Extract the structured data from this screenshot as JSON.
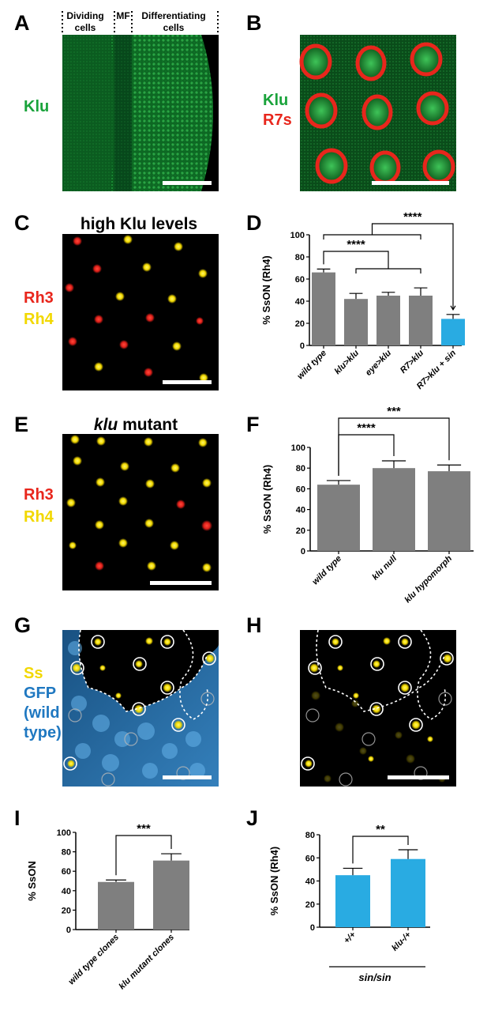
{
  "panel_labels": {
    "A": "A",
    "B": "B",
    "C": "C",
    "D": "D",
    "E": "E",
    "F": "F",
    "G": "G",
    "H": "H",
    "I": "I",
    "J": "J"
  },
  "panelA": {
    "header_dividing_1": "Dividing",
    "header_dividing_2": "cells",
    "header_mf": "MF",
    "header_diff_1": "Differentiating",
    "header_diff_2": "cells",
    "stain": "Klu",
    "stain_color": "#1aa33b"
  },
  "panelB": {
    "stain1": "Klu",
    "stain2": "R7s",
    "stain1_color": "#1aa33b",
    "stain2_color": "#e8261c"
  },
  "panelC": {
    "title": "high Klu levels",
    "stain1": "Rh3",
    "stain2": "Rh4",
    "stain1_color": "#e8261c",
    "stain2_color": "#f2d800"
  },
  "panelE": {
    "title_italic": "klu",
    "title_rest": " mutant",
    "stain1": "Rh3",
    "stain2": "Rh4"
  },
  "panelG": {
    "stain1": "Ss",
    "stain2": "GFP",
    "stain3": "(wild",
    "stain4": "type)",
    "stain1_color": "#f2d800",
    "stain2_color": "#1f78c1"
  },
  "chart_data": [
    {
      "panel": "D",
      "type": "bar",
      "ylabel": "% SsON (Rh4)",
      "ylim": [
        0,
        100
      ],
      "yticks": [
        0,
        20,
        40,
        60,
        80,
        100
      ],
      "categories": [
        "wild type",
        "klu>klu",
        "eye>klu",
        "R7>klu",
        "R7>klu + sin"
      ],
      "values": [
        66,
        42,
        45,
        45,
        24
      ],
      "errors": [
        3,
        5,
        3,
        7,
        4
      ],
      "colors": [
        "#7f7f7f",
        "#7f7f7f",
        "#7f7f7f",
        "#7f7f7f",
        "#29abe2"
      ],
      "significance": [
        "****",
        "****"
      ]
    },
    {
      "panel": "F",
      "type": "bar",
      "ylabel": "% SsON (Rh4)",
      "ylim": [
        0,
        100
      ],
      "yticks": [
        0,
        20,
        40,
        60,
        80,
        100
      ],
      "categories": [
        "wild type",
        "klu null",
        "klu hypomorph"
      ],
      "values": [
        64,
        80,
        77
      ],
      "errors": [
        4,
        7,
        6
      ],
      "colors": [
        "#7f7f7f",
        "#7f7f7f",
        "#7f7f7f"
      ],
      "significance": [
        "****",
        "***"
      ]
    },
    {
      "panel": "I",
      "type": "bar",
      "ylabel": "% SsON",
      "ylim": [
        0,
        100
      ],
      "yticks": [
        0,
        20,
        40,
        60,
        80,
        100
      ],
      "categories": [
        "wild type clones",
        "klu mutant clones"
      ],
      "values": [
        49,
        71
      ],
      "errors": [
        2,
        7
      ],
      "colors": [
        "#7f7f7f",
        "#7f7f7f"
      ],
      "significance": [
        "***"
      ]
    },
    {
      "panel": "J",
      "type": "bar",
      "ylabel": "% SsON (Rh4)",
      "ylim": [
        0,
        80
      ],
      "yticks": [
        0,
        20,
        40,
        60,
        80
      ],
      "categories": [
        "+/+",
        "klu-/+"
      ],
      "values": [
        45,
        59
      ],
      "errors": [
        6,
        8
      ],
      "colors": [
        "#29abe2",
        "#29abe2"
      ],
      "significance": [
        "**"
      ],
      "group_label": "sin/sin"
    }
  ]
}
